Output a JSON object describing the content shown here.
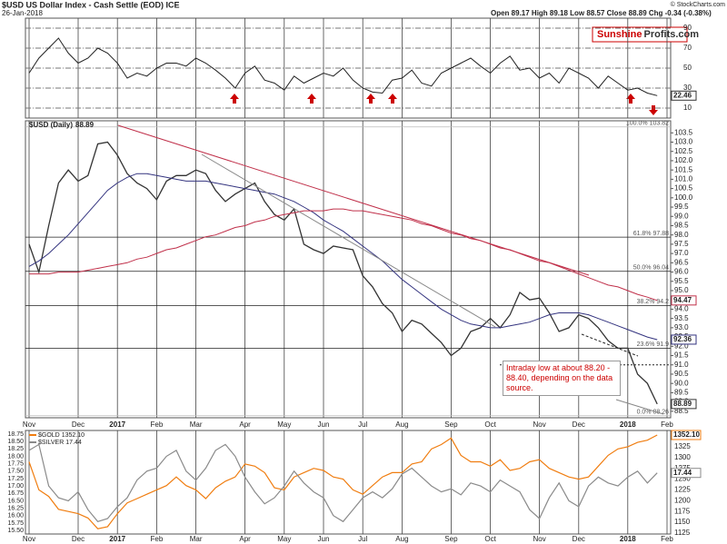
{
  "header": {
    "title": "$USD US Dollar Index - Cash Settle (EOD) ICE",
    "date": "26-Jan-2018",
    "quote": "Open 89.17 High 89.18 Low 88.57 Close 88.89 Chg -0.34 (-0.38%)",
    "source": "© StockCharts.com"
  },
  "logo": [
    "Sunshine",
    "Profits.com"
  ],
  "chart_data": [
    {
      "type": "line",
      "color": "#222",
      "values": [
        45,
        60,
        70,
        80,
        65,
        55,
        60,
        70,
        65,
        55,
        40,
        45,
        42,
        50,
        55,
        55,
        52,
        60,
        55,
        48,
        40,
        30,
        45,
        52,
        38,
        35,
        28,
        42,
        35,
        40,
        45,
        42,
        50,
        38,
        30,
        26,
        25,
        38,
        40,
        48,
        35,
        32,
        45,
        50,
        55,
        60,
        52,
        45,
        55,
        62,
        48,
        50,
        40,
        45,
        35,
        50,
        45,
        40,
        30,
        42,
        35,
        28,
        30,
        25,
        22.46,
        null
      ],
      "ylim": [
        0,
        100
      ],
      "yticks": [
        10,
        30,
        50,
        70,
        90
      ],
      "grid": true
    },
    {
      "type": "line",
      "categories": [
        "Nov",
        null,
        null,
        null,
        null,
        "Dec",
        null,
        null,
        null,
        "2017",
        null,
        null,
        null,
        "Feb",
        null,
        null,
        null,
        "Mar",
        null,
        null,
        null,
        null,
        "Apr",
        null,
        null,
        null,
        "May",
        null,
        null,
        null,
        "Jun",
        null,
        null,
        null,
        "Jul",
        null,
        null,
        null,
        "Aug",
        null,
        null,
        null,
        null,
        "Sep",
        null,
        null,
        null,
        "Oct",
        null,
        null,
        null,
        null,
        "Nov",
        null,
        null,
        null,
        "Dec",
        null,
        null,
        null,
        null,
        "2018",
        null,
        null,
        null,
        "Feb"
      ],
      "series": [
        {
          "name": "$USD (Daily)",
          "color": "#333",
          "values": [
            97.5,
            96.0,
            98.5,
            100.8,
            101.5,
            100.9,
            101.2,
            102.9,
            103.0,
            102.3,
            101.3,
            100.8,
            100.5,
            99.9,
            100.9,
            101.2,
            101.2,
            101.5,
            101.3,
            100.4,
            99.8,
            100.2,
            100.5,
            100.8,
            99.8,
            99.1,
            98.8,
            99.4,
            97.5,
            97.2,
            97.0,
            97.4,
            97.3,
            97.2,
            95.8,
            95.2,
            94.3,
            93.8,
            92.8,
            93.4,
            93.2,
            92.7,
            92.2,
            91.5,
            91.9,
            92.8,
            93.0,
            93.5,
            93.0,
            93.7,
            94.9,
            94.5,
            94.6,
            93.8,
            92.8,
            93.0,
            93.7,
            93.5,
            93.0,
            92.3,
            91.9,
            91.9,
            90.5,
            90.0,
            88.89,
            null
          ]
        },
        {
          "color": "#33337f",
          "values": [
            96.3,
            96.6,
            97.0,
            97.5,
            98.0,
            98.6,
            99.2,
            99.8,
            100.4,
            100.8,
            101.1,
            101.3,
            101.3,
            101.2,
            101.1,
            101.0,
            100.9,
            100.9,
            100.9,
            100.8,
            100.7,
            100.6,
            100.5,
            100.4,
            100.3,
            100.2,
            100.0,
            99.8,
            99.5,
            99.2,
            98.8,
            98.5,
            98.2,
            97.8,
            97.4,
            97.0,
            96.6,
            96.1,
            95.6,
            95.2,
            94.8,
            94.4,
            94.0,
            93.7,
            93.4,
            93.2,
            93.1,
            93.0,
            93.0,
            93.1,
            93.2,
            93.3,
            93.5,
            93.7,
            93.8,
            93.8,
            93.8,
            93.7,
            93.5,
            93.3,
            93.1,
            92.9,
            92.7,
            92.5,
            92.36,
            null
          ]
        },
        {
          "color": "#c0304a",
          "values": [
            95.9,
            95.9,
            95.9,
            96.0,
            96.0,
            96.0,
            96.1,
            96.2,
            96.3,
            96.4,
            96.5,
            96.7,
            96.8,
            97.0,
            97.2,
            97.3,
            97.5,
            97.7,
            97.9,
            98.0,
            98.2,
            98.4,
            98.5,
            98.7,
            98.8,
            99.0,
            99.1,
            99.2,
            99.3,
            99.3,
            99.3,
            99.4,
            99.4,
            99.3,
            99.3,
            99.2,
            99.1,
            99.0,
            98.9,
            98.8,
            98.6,
            98.5,
            98.3,
            98.1,
            98.0,
            97.8,
            97.7,
            97.5,
            97.3,
            97.2,
            97.0,
            96.8,
            96.6,
            96.5,
            96.3,
            96.1,
            95.9,
            95.7,
            95.5,
            95.3,
            95.2,
            95.0,
            94.8,
            94.65,
            94.47,
            null
          ]
        }
      ],
      "ylim": [
        88.15,
        104.15
      ],
      "yticks": [
        103.5,
        {
          "value": 103,
          "label": "103.0"
        },
        102.5,
        {
          "value": 102,
          "label": "102.0"
        },
        101.5,
        {
          "value": 101,
          "label": "101.0"
        },
        100.5,
        {
          "value": 100,
          "label": "100.0"
        },
        99.5,
        {
          "value": 99,
          "label": "99.0"
        },
        98.5,
        {
          "value": 98,
          "label": "98.0"
        },
        97.5,
        {
          "value": 97,
          "label": "97.0"
        },
        96.5,
        {
          "value": 96,
          "label": "96.0"
        },
        95.5,
        {
          "value": 95,
          "label": "95.0"
        },
        94.5,
        {
          "value": 94,
          "label": "94.0"
        },
        93.5,
        {
          "value": 93,
          "label": "93.0"
        },
        92.5,
        {
          "value": 92,
          "label": "92.0"
        },
        91.5,
        {
          "value": 91,
          "label": "91.0"
        },
        90.5,
        {
          "value": 90,
          "label": "90.0"
        },
        89.5,
        {
          "value": 89,
          "label": "89.0"
        },
        88.5
      ],
      "fib_levels": [
        {
          "value": 103.82,
          "label": "100.0% 103.82"
        },
        {
          "value": 97.88,
          "label": "61.8% 97.88"
        },
        {
          "value": 96.04,
          "label": "50.0% 96.04"
        },
        {
          "value": 94.2,
          "label": "38.2% 94.2"
        },
        {
          "value": 91.9,
          "label": "23.6% 91.9"
        },
        {
          "value": 88.26,
          "label": "0.0% 88.26"
        }
      ],
      "dotted_levels": [
        91
      ],
      "annotation": "Intraday low at about 88.20 - 88.40, depending on the data source."
    },
    {
      "type": "line",
      "categories": [
        "Nov",
        null,
        null,
        null,
        null,
        "Dec",
        null,
        null,
        null,
        "2017",
        null,
        null,
        null,
        "Feb",
        null,
        null,
        null,
        "Mar",
        null,
        null,
        null,
        null,
        "Apr",
        null,
        null,
        null,
        "May",
        null,
        null,
        null,
        "Jun",
        null,
        null,
        null,
        "Jul",
        null,
        null,
        null,
        "Aug",
        null,
        null,
        null,
        null,
        "Sep",
        null,
        null,
        null,
        "Oct",
        null,
        null,
        null,
        null,
        "Nov",
        null,
        null,
        null,
        "Dec",
        null,
        null,
        null,
        null,
        "2018",
        null,
        null,
        null,
        "Feb"
      ],
      "series": [
        {
          "name": "$GOLD",
          "color": "#f07d10",
          "axis": "y2",
          "last_label": "1352.10",
          "values": [
            1290,
            1225,
            1210,
            1180,
            1175,
            1170,
            1160,
            1135,
            1140,
            1170,
            1195,
            1205,
            1215,
            1225,
            1235,
            1255,
            1235,
            1225,
            1205,
            1230,
            1245,
            1255,
            1285,
            1280,
            1265,
            1230,
            1225,
            1255,
            1265,
            1275,
            1270,
            1255,
            1250,
            1225,
            1215,
            1235,
            1255,
            1265,
            1265,
            1285,
            1290,
            1320,
            1330,
            1345,
            1305,
            1290,
            1290,
            1280,
            1295,
            1270,
            1275,
            1290,
            1295,
            1275,
            1265,
            1255,
            1250,
            1255,
            1280,
            1305,
            1320,
            1325,
            1335,
            1340,
            1352.1,
            null
          ]
        },
        {
          "name": "$SILVER",
          "color": "#8a8a8a",
          "values": [
            18.2,
            18.4,
            17.0,
            16.6,
            16.5,
            16.8,
            16.2,
            15.8,
            15.9,
            16.3,
            16.6,
            17.2,
            17.5,
            17.6,
            18.0,
            18.2,
            17.5,
            17.2,
            17.6,
            18.2,
            18.4,
            18.0,
            17.3,
            16.8,
            16.4,
            16.6,
            17.0,
            17.5,
            17.1,
            16.8,
            16.6,
            16.0,
            15.8,
            16.2,
            16.6,
            16.8,
            16.6,
            16.9,
            17.4,
            17.6,
            17.3,
            17.0,
            16.8,
            16.9,
            16.7,
            17.1,
            17.0,
            16.8,
            17.2,
            17.0,
            16.8,
            16.2,
            15.9,
            16.6,
            17.1,
            16.5,
            16.3,
            17.0,
            17.3,
            17.1,
            17.0,
            17.3,
            17.5,
            17.1,
            17.44,
            null
          ]
        }
      ],
      "ylim": [
        15.38,
        18.87
      ],
      "yticks": [
        18.75,
        {
          "value": 18.5,
          "label": "18.50"
        },
        18.25,
        {
          "value": 18,
          "label": "18.00"
        },
        17.75,
        {
          "value": 17.5,
          "label": "17.50"
        },
        17.25,
        {
          "value": 17,
          "label": "17.00"
        },
        16.75,
        {
          "value": 16.5,
          "label": "16.50"
        },
        16.25,
        {
          "value": 16,
          "label": "16.00"
        },
        15.75,
        {
          "value": 15.5,
          "label": "15.50"
        }
      ],
      "y2lim": [
        1122.9,
        1362.6
      ],
      "y2ticks": [
        1350,
        1325,
        1300,
        1275,
        1250,
        1225,
        1200,
        1175,
        1150,
        1125
      ]
    }
  ]
}
